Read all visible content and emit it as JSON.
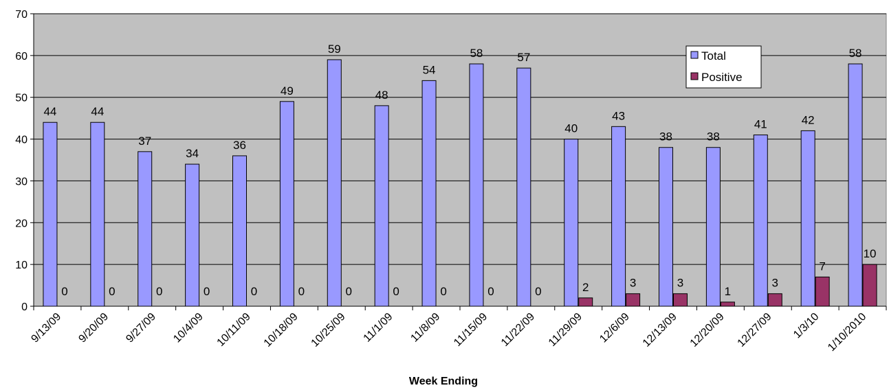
{
  "chart_data": {
    "type": "bar",
    "xlabel": "Week Ending",
    "ylabel": "",
    "ylim": [
      0,
      70
    ],
    "yticks": [
      0,
      10,
      20,
      30,
      40,
      50,
      60,
      70
    ],
    "grid": true,
    "legend_position": "top-right",
    "categories": [
      "9/13/09",
      "9/20/09",
      "9/27/09",
      "10/4/09",
      "10/11/09",
      "10/18/09",
      "10/25/09",
      "11/1/09",
      "11/8/09",
      "11/15/09",
      "11/22/09",
      "11/29/09",
      "12/6/09",
      "12/13/09",
      "12/20/09",
      "12/27/09",
      "1/3/10",
      "1/10/2010"
    ],
    "series": [
      {
        "name": "Total",
        "color": "#9999ff",
        "values": [
          44,
          44,
          37,
          34,
          36,
          49,
          59,
          48,
          54,
          58,
          57,
          40,
          43,
          38,
          38,
          41,
          42,
          58
        ]
      },
      {
        "name": "Positive",
        "color": "#993366",
        "values": [
          0,
          0,
          0,
          0,
          0,
          0,
          0,
          0,
          0,
          0,
          0,
          2,
          3,
          3,
          1,
          3,
          7,
          10
        ]
      }
    ],
    "plot_background": "#c0c0c0"
  }
}
